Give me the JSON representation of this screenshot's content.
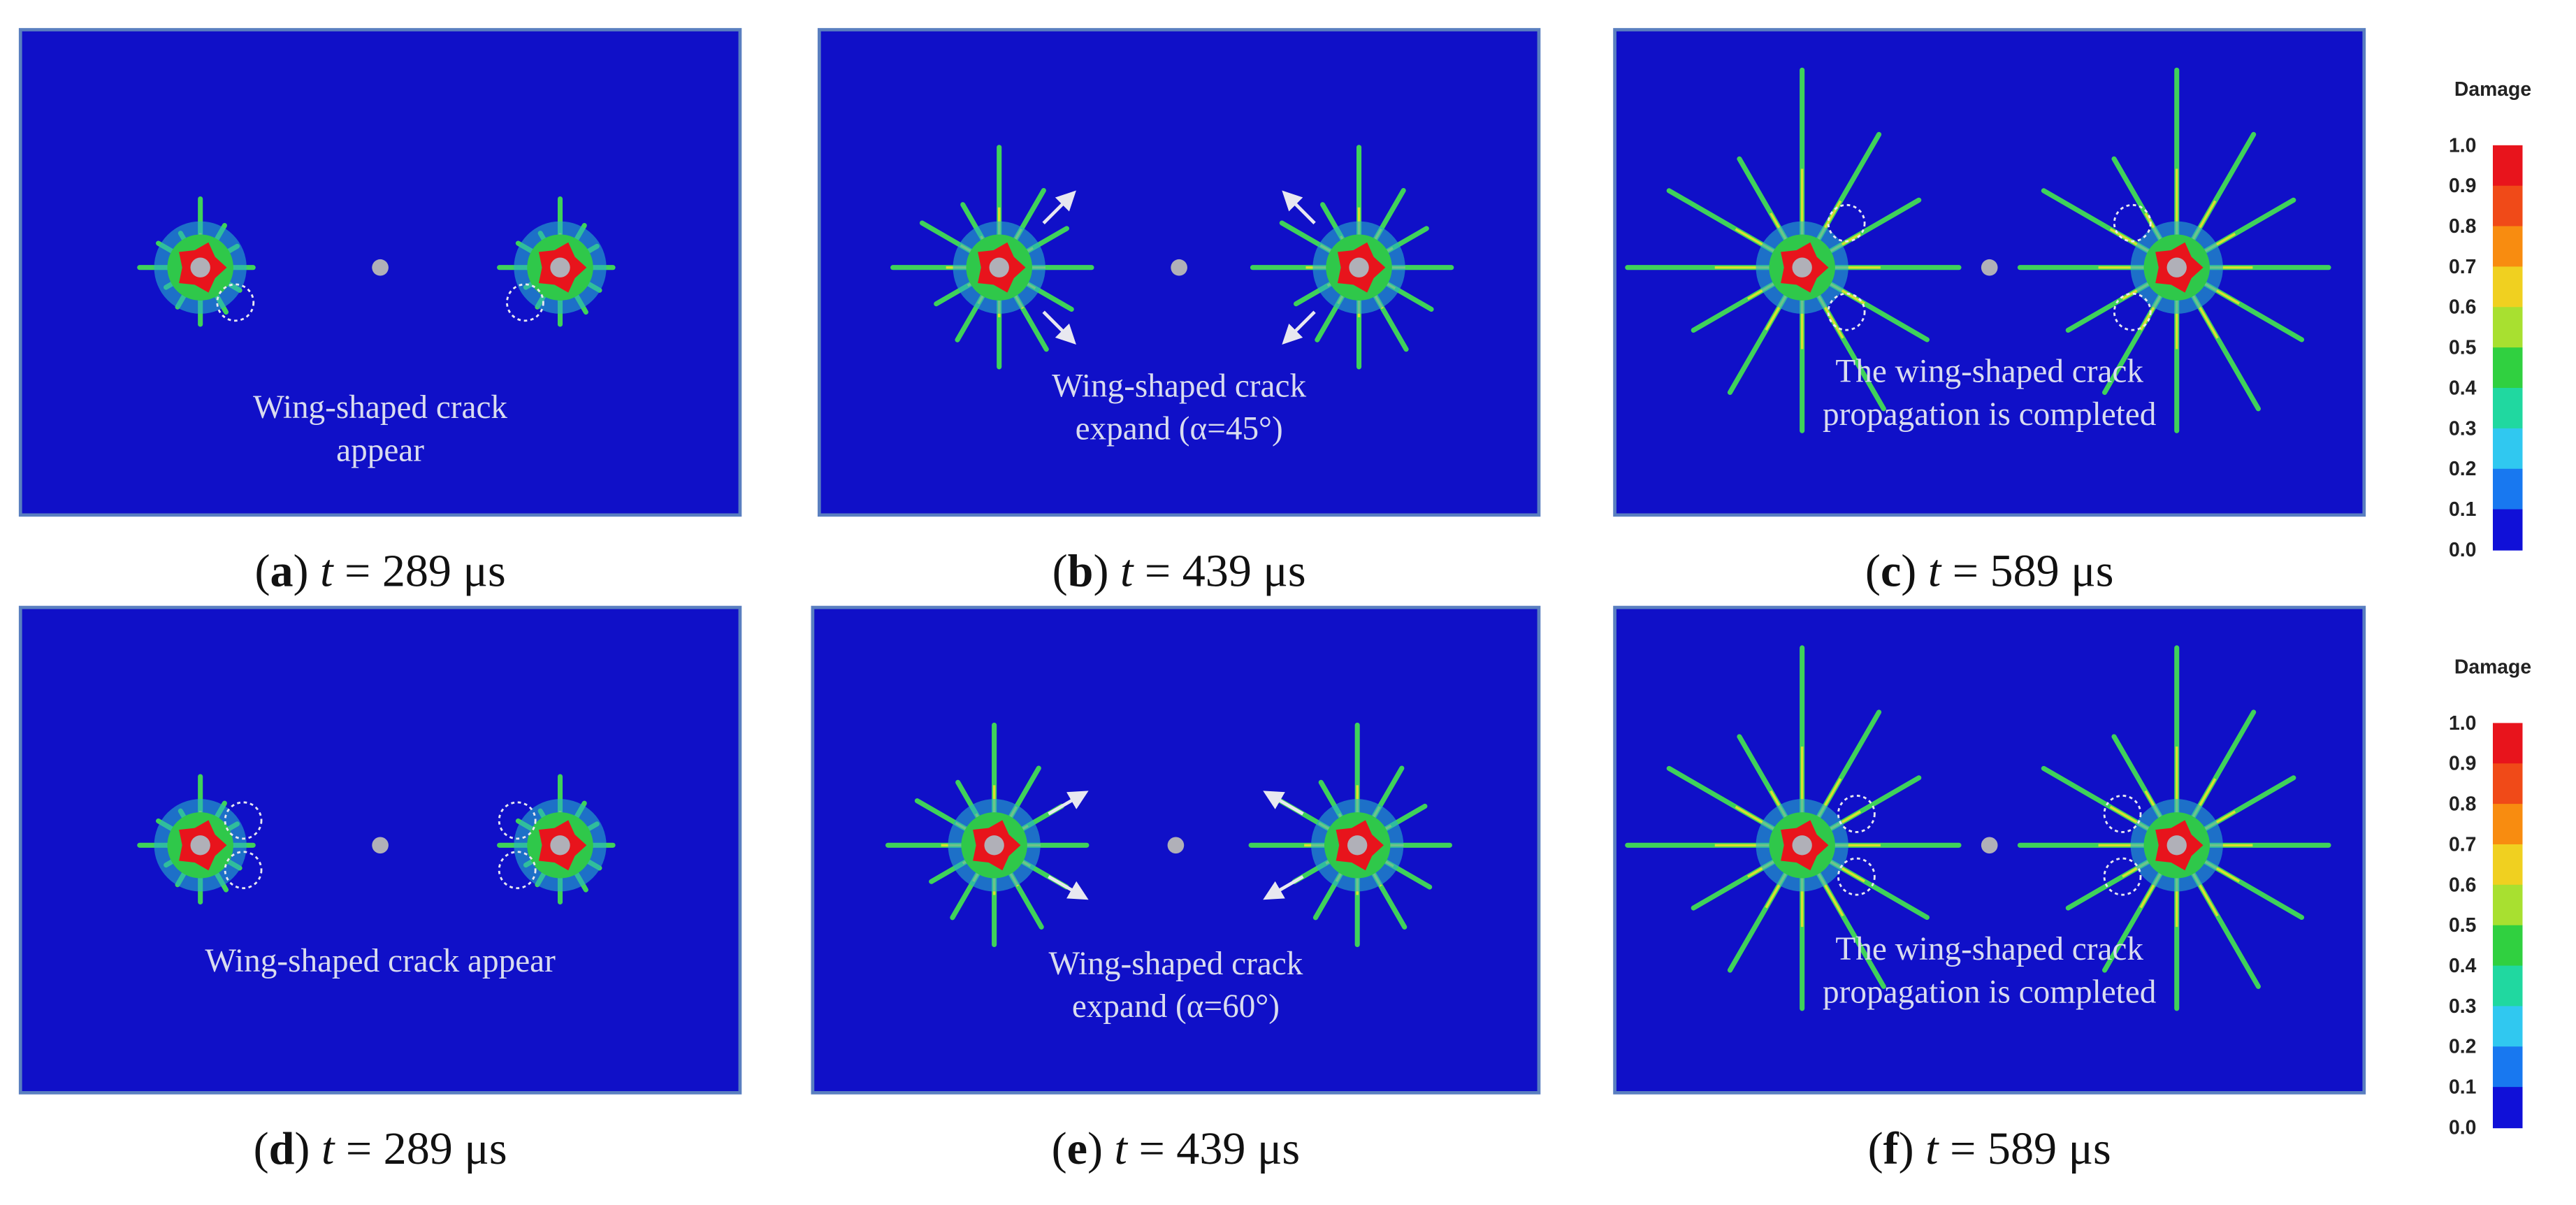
{
  "panels": [
    {
      "letter": "a",
      "var": "t",
      "value": "= 289 μs",
      "note": [
        "Wing-shaped crack",
        "appear"
      ]
    },
    {
      "letter": "b",
      "var": "t",
      "value": "= 439 μs",
      "note": [
        "Wing-shaped crack",
        "expand (α=45°)"
      ]
    },
    {
      "letter": "c",
      "var": "t",
      "value": "= 589 μs",
      "note": [
        "The wing-shaped crack",
        "propagation is completed"
      ]
    },
    {
      "letter": "d",
      "var": "t",
      "value": "= 289 μs",
      "note": [
        "Wing-shaped crack appear"
      ]
    },
    {
      "letter": "e",
      "var": "t",
      "value": "= 439 μs",
      "note": [
        "Wing-shaped crack",
        "expand (α=60°)"
      ]
    },
    {
      "letter": "f",
      "var": "t",
      "value": "= 589 μs",
      "note": [
        "The wing-shaped crack",
        "propagation is completed"
      ]
    }
  ],
  "colorbars": [
    {
      "title": "Damage",
      "ticks": [
        "1.0",
        "0.9",
        "0.8",
        "0.7",
        "0.6",
        "0.5",
        "0.4",
        "0.3",
        "0.2",
        "0.1",
        "0.0"
      ]
    },
    {
      "title": "Damage",
      "ticks": [
        "1.0",
        "0.9",
        "0.8",
        "0.7",
        "0.6",
        "0.5",
        "0.4",
        "0.3",
        "0.2",
        "0.1",
        "0.0"
      ]
    }
  ]
}
